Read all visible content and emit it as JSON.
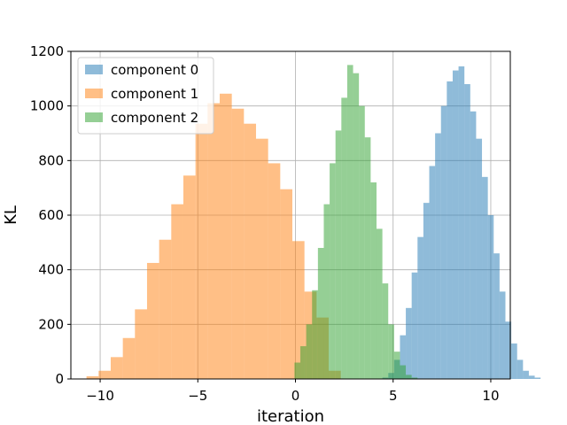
{
  "chart_data": {
    "type": "bar",
    "xlabel": "iteration",
    "ylabel": "KL",
    "xlim": [
      -11.5,
      11.0
    ],
    "ylim": [
      0,
      1200
    ],
    "xticks": [
      -10,
      -5,
      0,
      5,
      10
    ],
    "xtick_labels": [
      "−10",
      "−5",
      "0",
      "5",
      "10"
    ],
    "yticks": [
      0,
      200,
      400,
      600,
      800,
      1000,
      1200
    ],
    "ytick_labels": [
      "0",
      "200",
      "400",
      "600",
      "800",
      "1000",
      "1200"
    ],
    "grid": true,
    "legend_position": "top-left",
    "opacity": 0.5,
    "series": [
      {
        "name": "component 0",
        "color": "#1f77b4",
        "bin_start": 4.45,
        "bin_width": 0.3,
        "counts": [
          5,
          22,
          70,
          160,
          260,
          390,
          520,
          645,
          780,
          900,
          1000,
          1090,
          1130,
          1145,
          1080,
          980,
          880,
          740,
          600,
          460,
          320,
          210,
          130,
          70,
          30,
          12,
          5
        ]
      },
      {
        "name": "component 1",
        "color": "#ff7f0e",
        "bin_start": -10.7,
        "bin_width": 0.62,
        "counts": [
          10,
          30,
          80,
          150,
          255,
          425,
          510,
          640,
          745,
          935,
          1010,
          1045,
          990,
          935,
          880,
          790,
          695,
          505,
          320,
          225,
          30
        ]
      },
      {
        "name": "component 2",
        "color": "#2ca02c",
        "bin_start": -0.05,
        "bin_width": 0.3,
        "counts": [
          60,
          120,
          200,
          325,
          480,
          640,
          790,
          910,
          1030,
          1150,
          1120,
          1000,
          885,
          720,
          550,
          350,
          200,
          100,
          50,
          15,
          5
        ]
      }
    ]
  }
}
